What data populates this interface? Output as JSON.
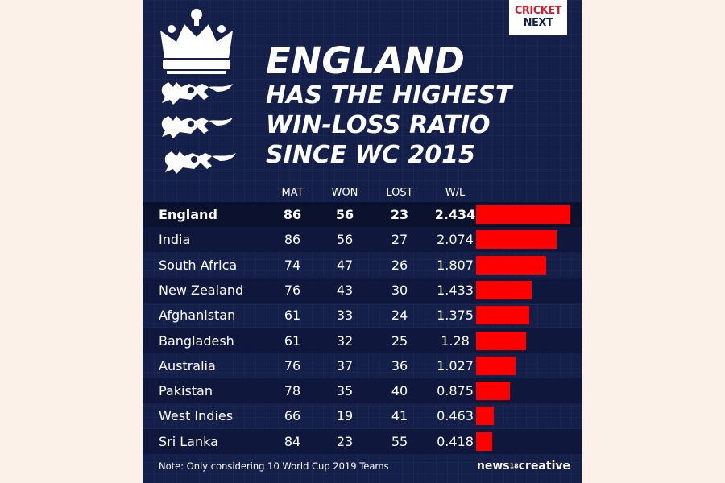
{
  "logo": {
    "line1": "CRICKET",
    "line2": "NEXT"
  },
  "headline": {
    "line1": "ENGLAND",
    "line2": "HAS THE HIGHEST",
    "line3": "WIN-LOSS RATIO",
    "line4": "SINCE WC 2015"
  },
  "colors": {
    "background": "#15204a",
    "bar": "#ff0000",
    "text": "#ffffff",
    "page": "#fbf1e9"
  },
  "icons": {
    "crest": "three-lions-crest-icon"
  },
  "chart_data": {
    "type": "table",
    "columns": [
      "MAT",
      "WON",
      "LOST",
      "W/L"
    ],
    "rows": [
      {
        "team": "England",
        "mat": "86",
        "won": "56",
        "lost": "23",
        "wl": "2.434"
      },
      {
        "team": "India",
        "mat": "86",
        "won": "56",
        "lost": "27",
        "wl": "2.074"
      },
      {
        "team": "South Africa",
        "mat": "74",
        "won": "47",
        "lost": "26",
        "wl": "1.807"
      },
      {
        "team": "New Zealand",
        "mat": "76",
        "won": "43",
        "lost": "30",
        "wl": "1.433"
      },
      {
        "team": "Afghanistan",
        "mat": "61",
        "won": "33",
        "lost": "24",
        "wl": "1.375"
      },
      {
        "team": "Bangladesh",
        "mat": "61",
        "won": "32",
        "lost": "25",
        "wl": "1.28"
      },
      {
        "team": "Australia",
        "mat": "76",
        "won": "37",
        "lost": "36",
        "wl": "1.027"
      },
      {
        "team": "Pakistan",
        "mat": "78",
        "won": "35",
        "lost": "40",
        "wl": "0.875"
      },
      {
        "team": "West Indies",
        "mat": "66",
        "won": "19",
        "lost": "41",
        "wl": "0.463"
      },
      {
        "team": "Sri Lanka",
        "mat": "84",
        "won": "23",
        "lost": "55",
        "wl": "0.418"
      }
    ],
    "bar_series": {
      "values": [
        2.434,
        2.074,
        1.807,
        1.433,
        1.375,
        1.28,
        1.027,
        0.875,
        0.463,
        0.418
      ]
    }
  },
  "note": "Note: Only considering 10 World Cup 2019 Teams",
  "brand": {
    "prefix": "news",
    "num": "18",
    "word": "creative"
  }
}
